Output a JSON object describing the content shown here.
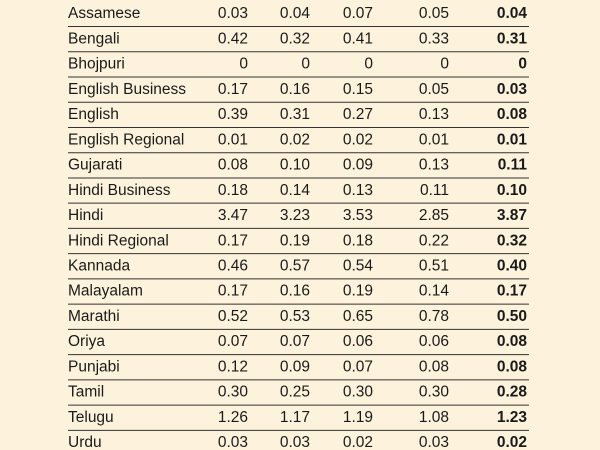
{
  "table": {
    "rows": [
      [
        "Assamese",
        "0.03",
        "0.04",
        "0.07",
        "0.05",
        "0.04"
      ],
      [
        "Bengali",
        "0.42",
        "0.32",
        "0.41",
        "0.33",
        "0.31"
      ],
      [
        "Bhojpuri",
        "0",
        "0",
        "0",
        "0",
        "0"
      ],
      [
        "English Business",
        "0.17",
        "0.16",
        "0.15",
        "0.05",
        "0.03"
      ],
      [
        "English",
        "0.39",
        "0.31",
        "0.27",
        "0.13",
        "0.08"
      ],
      [
        "English Regional",
        "0.01",
        "0.02",
        "0.02",
        "0.01",
        "0.01"
      ],
      [
        "Gujarati",
        "0.08",
        "0.10",
        "0.09",
        "0.13",
        "0.11"
      ],
      [
        "Hindi Business",
        "0.18",
        "0.14",
        "0.13",
        "0.11",
        "0.10"
      ],
      [
        "Hindi",
        "3.47",
        "3.23",
        "3.53",
        "2.85",
        "3.87"
      ],
      [
        "Hindi Regional",
        "0.17",
        "0.19",
        "0.18",
        "0.22",
        "0.32"
      ],
      [
        "Kannada",
        "0.46",
        "0.57",
        "0.54",
        "0.51",
        "0.40"
      ],
      [
        "Malayalam",
        "0.17",
        "0.16",
        "0.19",
        "0.14",
        "0.17"
      ],
      [
        "Marathi",
        "0.52",
        "0.53",
        "0.65",
        "0.78",
        "0.50"
      ],
      [
        "Oriya",
        "0.07",
        "0.07",
        "0.06",
        "0.06",
        "0.08"
      ],
      [
        "Punjabi",
        "0.12",
        "0.09",
        "0.07",
        "0.08",
        "0.08"
      ],
      [
        "Tamil",
        "0.30",
        "0.25",
        "0.30",
        "0.30",
        "0.28"
      ],
      [
        "Telugu",
        "1.26",
        "1.17",
        "1.19",
        "1.08",
        "1.23"
      ],
      [
        "Urdu",
        "0.03",
        "0.03",
        "0.02",
        "0.03",
        "0.02"
      ]
    ]
  }
}
